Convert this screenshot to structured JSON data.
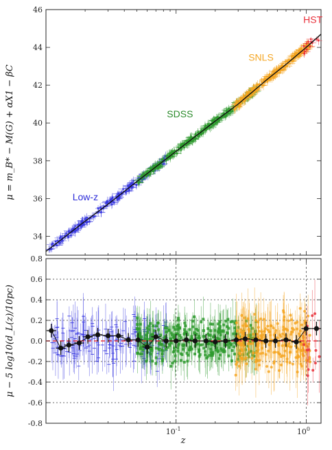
{
  "chart_data": [
    {
      "type": "scatter",
      "panel": "top",
      "ylabel": "μ = m_B* − M(G) + αX1 − βC",
      "xscale": "log",
      "xlim": [
        0.01,
        1.3
      ],
      "ylim": [
        33,
        46
      ],
      "yticks": [
        34,
        36,
        38,
        40,
        42,
        44,
        46
      ],
      "annotations": [
        {
          "text": "Low-z",
          "color": "#2b2bd8"
        },
        {
          "text": "SDSS",
          "color": "#2a8a2a"
        },
        {
          "text": "SNLS",
          "color": "#f5a623"
        },
        {
          "text": "HST",
          "color": "#e8303a"
        }
      ],
      "series": [
        {
          "name": "Low-z",
          "color": "#3a3ae0",
          "x": [
            0.0105,
            0.0115,
            0.012,
            0.013,
            0.014,
            0.015,
            0.016,
            0.017,
            0.018,
            0.019,
            0.02,
            0.022,
            0.024,
            0.026,
            0.028,
            0.03,
            0.032,
            0.034,
            0.036,
            0.038,
            0.04,
            0.043,
            0.046,
            0.05,
            0.054,
            0.058,
            0.062,
            0.066,
            0.07,
            0.075,
            0.08
          ],
          "y": [
            33.4,
            33.6,
            33.9,
            34.0,
            34.2,
            34.3,
            34.4,
            34.6,
            34.7,
            34.8,
            34.9,
            35.1,
            35.3,
            35.5,
            35.7,
            35.8,
            35.9,
            36.1,
            36.2,
            36.3,
            36.5,
            36.6,
            36.8,
            37.0,
            37.1,
            37.3,
            37.4,
            37.6,
            37.7,
            37.8,
            38.0
          ]
        },
        {
          "name": "SDSS",
          "color": "#2e9a2e",
          "x": [
            0.07,
            0.08,
            0.09,
            0.1,
            0.11,
            0.12,
            0.13,
            0.14,
            0.15,
            0.16,
            0.17,
            0.18,
            0.19,
            0.2,
            0.22,
            0.24,
            0.26,
            0.28,
            0.3,
            0.32,
            0.34,
            0.36,
            0.38,
            0.4
          ],
          "y": [
            37.7,
            38.0,
            38.3,
            38.5,
            38.7,
            38.9,
            39.1,
            39.3,
            39.4,
            39.5,
            39.6,
            39.8,
            39.9,
            40.0,
            40.2,
            40.4,
            40.6,
            40.8,
            41.0,
            41.1,
            41.2,
            41.4,
            41.5,
            41.6
          ]
        },
        {
          "name": "SNLS",
          "color": "#f5a623",
          "x": [
            0.3,
            0.35,
            0.4,
            0.45,
            0.5,
            0.55,
            0.6,
            0.65,
            0.7,
            0.75,
            0.8,
            0.85,
            0.9,
            0.95,
            1.0,
            1.05
          ],
          "y": [
            41.0,
            41.4,
            41.7,
            42.0,
            42.3,
            42.6,
            42.8,
            43.0,
            43.2,
            43.4,
            43.6,
            43.8,
            43.9,
            44.0,
            44.2,
            44.3
          ]
        },
        {
          "name": "HST",
          "color": "#e8303a",
          "x": [
            0.95,
            1.05,
            1.15,
            1.25
          ],
          "y": [
            44.0,
            44.3,
            44.6,
            44.9
          ]
        }
      ],
      "model_curve": {
        "x": [
          0.01,
          0.02,
          0.03,
          0.05,
          0.1,
          0.2,
          0.3,
          0.5,
          0.7,
          1.0,
          1.3
        ],
        "y": [
          33.2,
          34.8,
          35.7,
          36.9,
          38.5,
          40.1,
          41.0,
          42.3,
          43.1,
          44.0,
          44.7
        ],
        "color": "#111111"
      }
    },
    {
      "type": "scatter",
      "panel": "bottom",
      "xlabel": "z",
      "ylabel": "μ − 5 log10(d_L(z)/10pc)",
      "xscale": "log",
      "xlim": [
        0.01,
        1.3
      ],
      "ylim": [
        -0.8,
        0.8
      ],
      "yticks": [
        -0.8,
        -0.6,
        -0.4,
        -0.2,
        0.0,
        0.2,
        0.4,
        0.6,
        0.8
      ],
      "xtick_labels": [
        "10^-1",
        "10^0"
      ],
      "xticks": [
        0.1,
        1.0
      ],
      "binned": {
        "color": "#111111",
        "x": [
          0.011,
          0.013,
          0.015,
          0.018,
          0.021,
          0.025,
          0.03,
          0.036,
          0.043,
          0.051,
          0.06,
          0.07,
          0.084,
          0.1,
          0.12,
          0.14,
          0.17,
          0.2,
          0.24,
          0.29,
          0.34,
          0.41,
          0.49,
          0.58,
          0.7,
          0.84,
          1.0,
          1.2
        ],
        "y": [
          0.1,
          -0.07,
          -0.04,
          -0.02,
          0.04,
          0.06,
          0.05,
          0.05,
          0.01,
          0.01,
          -0.06,
          0.04,
          0.0,
          0.0,
          0.01,
          0.0,
          0.0,
          -0.01,
          0.0,
          0.01,
          0.02,
          0.01,
          0.0,
          0.0,
          0.01,
          -0.01,
          0.12,
          0.12
        ]
      },
      "zero_line": {
        "y": 0.0,
        "color": "#e8303a"
      },
      "reference_lines_y": [
        -0.6,
        -0.4,
        0.4,
        0.6
      ],
      "grid_x": [
        0.1,
        1.0
      ]
    }
  ]
}
